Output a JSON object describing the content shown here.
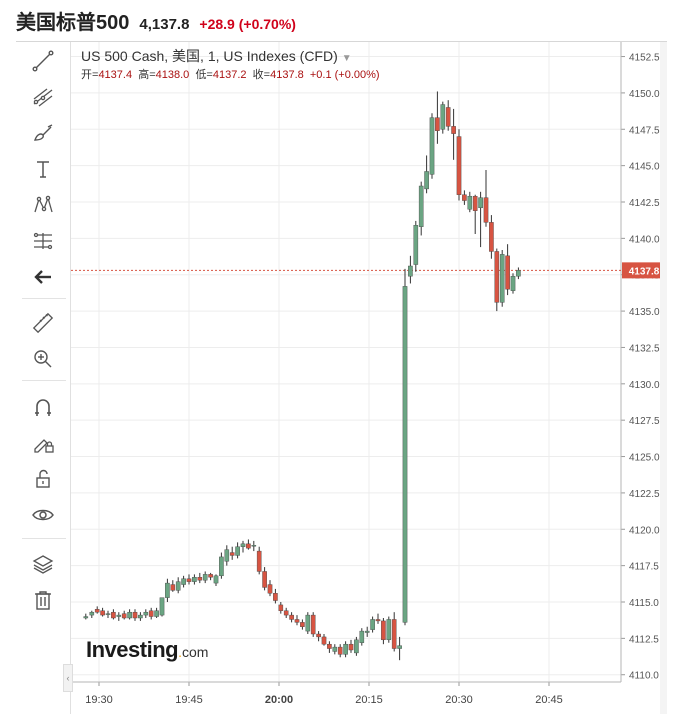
{
  "header": {
    "name": "美国标普500",
    "price": "4,137.8",
    "change": "+28.9 (+0.70%)"
  },
  "legend": {
    "title": "US 500 Cash, 美国, 1, US Indexes (CFD)",
    "ohlc": {
      "open_label": "开=",
      "open": "4137.4",
      "high_label": "高=",
      "high": "4138.0",
      "low_label": "低=",
      "low": "4137.2",
      "close_label": "收=",
      "close": "4137.8",
      "change": "+0.1 (+0.00%)"
    }
  },
  "logo": {
    "main": "Investing",
    "suffix": "com"
  },
  "toolbar": {
    "icons": [
      "trend-line-icon",
      "pitchfork-icon",
      "brush-icon",
      "text-icon",
      "pattern-icon",
      "fibonacci-icon",
      "back-arrow-icon",
      "ruler-icon",
      "zoom-in-icon",
      "magnet-icon",
      "lock-drawing-icon",
      "unlock-icon",
      "eye-icon",
      "layers-icon",
      "trash-icon"
    ]
  },
  "colors": {
    "up": "#6ba583",
    "down": "#d75442",
    "accent_red": "#d0021b",
    "grid": "#ededed",
    "price_tag": "#d75442"
  },
  "chart_data": {
    "type": "candlestick",
    "symbol": "US 500 Cash",
    "interval_minutes": 1,
    "y_axis": {
      "range": [
        4109.5,
        4153.5
      ],
      "ticks": [
        "4110.0",
        "4112.5",
        "4115.0",
        "4117.5",
        "4120.0",
        "4122.5",
        "4125.0",
        "4127.5",
        "4130.0",
        "4132.5",
        "4135.0",
        "4137.5",
        "4140.0",
        "4142.5",
        "4145.0",
        "4147.5",
        "4150.0",
        "4152.5"
      ]
    },
    "x_axis": {
      "ticks": [
        {
          "label": "19:30",
          "minute": 0,
          "bold": false
        },
        {
          "label": "19:45",
          "minute": 15,
          "bold": false
        },
        {
          "label": "20:00",
          "minute": 30,
          "bold": true
        },
        {
          "label": "20:15",
          "minute": 45,
          "bold": false
        },
        {
          "label": "20:30",
          "minute": 60,
          "bold": false
        },
        {
          "label": "20:45",
          "minute": 75,
          "bold": false
        }
      ]
    },
    "current_price": {
      "label": "4137.8",
      "value": 4137.8
    },
    "candles": [
      {
        "m": -2.2,
        "o": 4113.9,
        "h": 4114.2,
        "l": 4113.8,
        "c": 4114.0
      },
      {
        "m": -1.2,
        "o": 4114.1,
        "h": 4114.4,
        "l": 4113.9,
        "c": 4114.3
      },
      {
        "m": -0.3,
        "o": 4114.5,
        "h": 4114.7,
        "l": 4114.2,
        "c": 4114.3
      },
      {
        "m": 0.6,
        "o": 4114.4,
        "h": 4114.6,
        "l": 4114.0,
        "c": 4114.1
      },
      {
        "m": 1.5,
        "o": 4114.2,
        "h": 4114.4,
        "l": 4113.9,
        "c": 4114.2
      },
      {
        "m": 2.4,
        "o": 4114.3,
        "h": 4114.5,
        "l": 4113.8,
        "c": 4113.9
      },
      {
        "m": 3.3,
        "o": 4114.0,
        "h": 4114.3,
        "l": 4113.7,
        "c": 4114.1
      },
      {
        "m": 4.2,
        "o": 4114.2,
        "h": 4114.4,
        "l": 4113.8,
        "c": 4113.9
      },
      {
        "m": 5.1,
        "o": 4113.9,
        "h": 4114.5,
        "l": 4113.8,
        "c": 4114.3
      },
      {
        "m": 6.0,
        "o": 4114.3,
        "h": 4114.5,
        "l": 4113.7,
        "c": 4113.9
      },
      {
        "m": 6.9,
        "o": 4113.9,
        "h": 4114.3,
        "l": 4113.7,
        "c": 4114.1
      },
      {
        "m": 7.8,
        "o": 4114.1,
        "h": 4114.5,
        "l": 4113.9,
        "c": 4114.3
      },
      {
        "m": 8.7,
        "o": 4114.4,
        "h": 4114.6,
        "l": 4113.8,
        "c": 4114.0
      },
      {
        "m": 9.6,
        "o": 4114.0,
        "h": 4114.6,
        "l": 4113.9,
        "c": 4114.4
      },
      {
        "m": 10.5,
        "o": 4114.1,
        "h": 4114.9,
        "l": 4114.0,
        "c": 4115.3
      },
      {
        "m": 11.4,
        "o": 4115.3,
        "h": 4116.6,
        "l": 4115.0,
        "c": 4116.3
      },
      {
        "m": 12.3,
        "o": 4116.2,
        "h": 4116.5,
        "l": 4115.7,
        "c": 4115.8
      },
      {
        "m": 13.2,
        "o": 4115.8,
        "h": 4116.7,
        "l": 4115.6,
        "c": 4116.4
      },
      {
        "m": 14.1,
        "o": 4116.2,
        "h": 4116.8,
        "l": 4116.0,
        "c": 4116.6
      },
      {
        "m": 15.0,
        "o": 4116.6,
        "h": 4116.9,
        "l": 4116.2,
        "c": 4116.4
      },
      {
        "m": 15.9,
        "o": 4116.4,
        "h": 4116.9,
        "l": 4116.2,
        "c": 4116.7
      },
      {
        "m": 16.8,
        "o": 4116.7,
        "h": 4117.0,
        "l": 4116.3,
        "c": 4116.5
      },
      {
        "m": 17.7,
        "o": 4116.5,
        "h": 4117.1,
        "l": 4116.3,
        "c": 4116.9
      },
      {
        "m": 18.6,
        "o": 4116.9,
        "h": 4117.0,
        "l": 4116.5,
        "c": 4116.7
      },
      {
        "m": 19.5,
        "o": 4116.3,
        "h": 4116.9,
        "l": 4116.1,
        "c": 4116.8
      },
      {
        "m": 20.4,
        "o": 4116.8,
        "h": 4118.4,
        "l": 4116.6,
        "c": 4118.1
      },
      {
        "m": 21.3,
        "o": 4117.8,
        "h": 4118.9,
        "l": 4117.5,
        "c": 4118.6
      },
      {
        "m": 22.2,
        "o": 4118.4,
        "h": 4118.8,
        "l": 4117.9,
        "c": 4118.2
      },
      {
        "m": 23.1,
        "o": 4118.2,
        "h": 4119.1,
        "l": 4118.0,
        "c": 4118.8
      },
      {
        "m": 24.0,
        "o": 4118.8,
        "h": 4119.2,
        "l": 4118.4,
        "c": 4119.0
      },
      {
        "m": 24.9,
        "o": 4119.0,
        "h": 4119.3,
        "l": 4118.6,
        "c": 4118.7
      },
      {
        "m": 25.8,
        "o": 4118.9,
        "h": 4119.2,
        "l": 4118.5,
        "c": 4118.9
      },
      {
        "m": 26.7,
        "o": 4118.5,
        "h": 4118.8,
        "l": 4116.9,
        "c": 4117.1
      },
      {
        "m": 27.6,
        "o": 4117.1,
        "h": 4117.4,
        "l": 4115.8,
        "c": 4116.0
      },
      {
        "m": 28.5,
        "o": 4116.2,
        "h": 4116.5,
        "l": 4115.4,
        "c": 4115.6
      },
      {
        "m": 29.4,
        "o": 4115.6,
        "h": 4115.9,
        "l": 4114.9,
        "c": 4115.1
      },
      {
        "m": 30.3,
        "o": 4114.8,
        "h": 4115.0,
        "l": 4114.2,
        "c": 4114.4
      },
      {
        "m": 31.2,
        "o": 4114.4,
        "h": 4114.6,
        "l": 4113.9,
        "c": 4114.1
      },
      {
        "m": 32.1,
        "o": 4114.1,
        "h": 4114.3,
        "l": 4113.6,
        "c": 4113.8
      },
      {
        "m": 33.0,
        "o": 4113.8,
        "h": 4114.1,
        "l": 4113.4,
        "c": 4113.6
      },
      {
        "m": 33.9,
        "o": 4113.6,
        "h": 4113.8,
        "l": 4113.1,
        "c": 4113.3
      },
      {
        "m": 34.8,
        "o": 4113.0,
        "h": 4114.3,
        "l": 4112.8,
        "c": 4114.1
      },
      {
        "m": 35.7,
        "o": 4114.1,
        "h": 4114.3,
        "l": 4112.6,
        "c": 4112.8
      },
      {
        "m": 36.6,
        "o": 4112.8,
        "h": 4113.0,
        "l": 4112.3,
        "c": 4112.6
      },
      {
        "m": 37.5,
        "o": 4112.6,
        "h": 4112.8,
        "l": 4112.0,
        "c": 4112.1
      },
      {
        "m": 38.4,
        "o": 4112.1,
        "h": 4112.3,
        "l": 4111.5,
        "c": 4111.8
      },
      {
        "m": 39.3,
        "o": 4111.6,
        "h": 4112.1,
        "l": 4111.4,
        "c": 4111.9
      },
      {
        "m": 40.2,
        "o": 4111.9,
        "h": 4112.1,
        "l": 4111.2,
        "c": 4111.4
      },
      {
        "m": 41.1,
        "o": 4111.4,
        "h": 4112.3,
        "l": 4111.2,
        "c": 4112.1
      },
      {
        "m": 42.0,
        "o": 4112.1,
        "h": 4112.4,
        "l": 4111.5,
        "c": 4111.7
      },
      {
        "m": 42.9,
        "o": 4111.5,
        "h": 4112.6,
        "l": 4111.3,
        "c": 4112.4
      },
      {
        "m": 43.8,
        "o": 4112.2,
        "h": 4113.2,
        "l": 4112.0,
        "c": 4113.0
      },
      {
        "m": 44.7,
        "o": 4112.9,
        "h": 4113.3,
        "l": 4112.6,
        "c": 4113.0
      },
      {
        "m": 45.6,
        "o": 4113.1,
        "h": 4114.0,
        "l": 4112.9,
        "c": 4113.8
      },
      {
        "m": 46.5,
        "o": 4113.8,
        "h": 4114.2,
        "l": 4113.5,
        "c": 4113.7
      },
      {
        "m": 47.4,
        "o": 4113.7,
        "h": 4113.9,
        "l": 4112.1,
        "c": 4112.4
      },
      {
        "m": 48.3,
        "o": 4112.4,
        "h": 4114.0,
        "l": 4112.2,
        "c": 4113.8
      },
      {
        "m": 49.2,
        "o": 4113.8,
        "h": 4114.3,
        "l": 4111.6,
        "c": 4111.8
      },
      {
        "m": 50.1,
        "o": 4111.8,
        "h": 4112.6,
        "l": 4111.0,
        "c": 4112.0
      },
      {
        "m": 51.0,
        "o": 4113.6,
        "h": 4137.9,
        "l": 4113.4,
        "c": 4136.7
      },
      {
        "m": 51.9,
        "o": 4137.4,
        "h": 4138.8,
        "l": 4136.9,
        "c": 4138.1
      },
      {
        "m": 52.8,
        "o": 4138.2,
        "h": 4141.2,
        "l": 4137.7,
        "c": 4140.9
      },
      {
        "m": 53.7,
        "o": 4140.8,
        "h": 4143.9,
        "l": 4140.2,
        "c": 4143.6
      },
      {
        "m": 54.6,
        "o": 4143.4,
        "h": 4145.7,
        "l": 4143.1,
        "c": 4144.6
      },
      {
        "m": 55.5,
        "o": 4144.4,
        "h": 4148.6,
        "l": 4144.1,
        "c": 4148.3
      },
      {
        "m": 56.4,
        "o": 4148.3,
        "h": 4150.1,
        "l": 4146.5,
        "c": 4147.4
      },
      {
        "m": 57.3,
        "o": 4147.5,
        "h": 4149.4,
        "l": 4147.2,
        "c": 4149.2
      },
      {
        "m": 58.2,
        "o": 4149.0,
        "h": 4149.5,
        "l": 4147.4,
        "c": 4147.7
      },
      {
        "m": 59.1,
        "o": 4147.7,
        "h": 4148.9,
        "l": 4145.4,
        "c": 4147.2
      },
      {
        "m": 60.0,
        "o": 4147.0,
        "h": 4147.5,
        "l": 4142.6,
        "c": 4143.0
      },
      {
        "m": 60.9,
        "o": 4143.0,
        "h": 4143.3,
        "l": 4142.3,
        "c": 4142.6
      },
      {
        "m": 61.8,
        "o": 4142.0,
        "h": 4143.2,
        "l": 4141.8,
        "c": 4142.9
      },
      {
        "m": 62.7,
        "o": 4142.9,
        "h": 4143.0,
        "l": 4140.3,
        "c": 4141.9
      },
      {
        "m": 63.6,
        "o": 4142.1,
        "h": 4143.2,
        "l": 4139.4,
        "c": 4142.8
      },
      {
        "m": 64.5,
        "o": 4142.8,
        "h": 4144.7,
        "l": 4140.8,
        "c": 4141.1
      },
      {
        "m": 65.4,
        "o": 4141.1,
        "h": 4141.6,
        "l": 4138.6,
        "c": 4139.1
      },
      {
        "m": 66.3,
        "o": 4139.1,
        "h": 4139.3,
        "l": 4135.0,
        "c": 4135.6
      },
      {
        "m": 67.2,
        "o": 4135.6,
        "h": 4139.2,
        "l": 4135.3,
        "c": 4138.9
      },
      {
        "m": 68.1,
        "o": 4138.8,
        "h": 4139.6,
        "l": 4136.1,
        "c": 4136.5
      },
      {
        "m": 69.0,
        "o": 4136.4,
        "h": 4137.6,
        "l": 4136.2,
        "c": 4137.4
      },
      {
        "m": 69.9,
        "o": 4137.4,
        "h": 4138.0,
        "l": 4137.2,
        "c": 4137.8
      }
    ]
  }
}
